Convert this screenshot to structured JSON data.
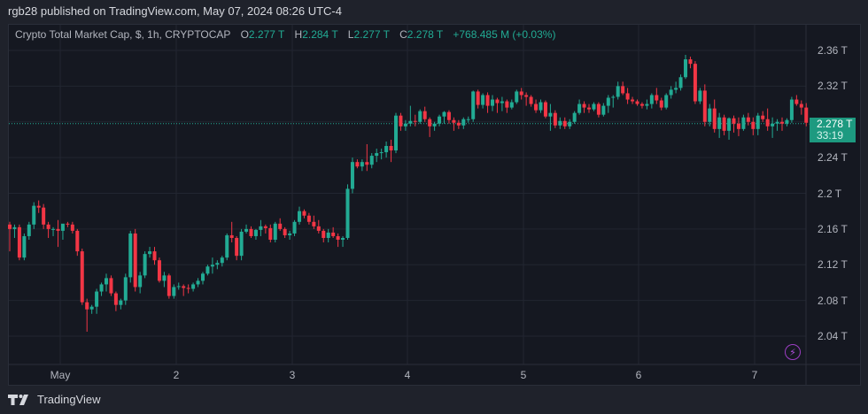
{
  "header": {
    "published": "rgb28 published on TradingView.com, May 07, 2024 08:26 UTC-4"
  },
  "legend": {
    "symbol": "Crypto Total Market Cap, $, 1h, CRYPTOCAP",
    "o_label": "O",
    "o": "2.277 T",
    "h_label": "H",
    "h": "2.284 T",
    "l_label": "L",
    "l": "2.277 T",
    "c_label": "C",
    "c": "2.278 T",
    "change": "+768.485 M (+0.03%)"
  },
  "price_tag": {
    "price": "2.278 T",
    "countdown": "33:19"
  },
  "footer": {
    "brand": "TradingView"
  },
  "colors": {
    "up": "#22ab94",
    "down": "#f23645",
    "bg": "#151821",
    "grid": "#222631",
    "accent": "#1d9a80",
    "bolt": "#9c3ec4"
  },
  "chart_data": {
    "type": "candlestick",
    "title": "Crypto Total Market Cap, $, 1h, CRYPTOCAP",
    "xlabel": "",
    "ylabel": "",
    "x_ticks": [
      "May",
      "2",
      "3",
      "4",
      "5",
      "6",
      "7"
    ],
    "y_ticks": [
      "2.36 T",
      "2.32 T",
      "2.28 T",
      "2.24 T",
      "2.2 T",
      "2.16 T",
      "2.12 T",
      "2.08 T",
      "2.04 T"
    ],
    "y_tick_values": [
      2.36,
      2.32,
      2.28,
      2.24,
      2.2,
      2.16,
      2.12,
      2.08,
      2.04
    ],
    "ylim": [
      2.0,
      2.37
    ],
    "last_price": 2.278,
    "grid": true,
    "candles_start_x": 11,
    "candle_spacing": 5.45,
    "candles": [
      [
        2.165,
        2.168,
        2.135,
        2.16
      ],
      [
        2.16,
        2.165,
        2.15,
        2.162
      ],
      [
        2.162,
        2.165,
        2.125,
        2.128
      ],
      [
        2.128,
        2.155,
        2.125,
        2.152
      ],
      [
        2.152,
        2.168,
        2.148,
        2.165
      ],
      [
        2.165,
        2.19,
        2.16,
        2.186
      ],
      [
        2.186,
        2.192,
        2.178,
        2.184
      ],
      [
        2.184,
        2.188,
        2.16,
        2.165
      ],
      [
        2.165,
        2.168,
        2.15,
        2.16
      ],
      [
        2.16,
        2.162,
        2.152,
        2.16
      ],
      [
        2.16,
        2.17,
        2.14,
        2.158
      ],
      [
        2.158,
        2.165,
        2.148,
        2.166
      ],
      [
        2.166,
        2.168,
        2.162,
        2.165
      ],
      [
        2.165,
        2.168,
        2.155,
        2.158
      ],
      [
        2.158,
        2.16,
        2.13,
        2.135
      ],
      [
        2.135,
        2.138,
        2.075,
        2.078
      ],
      [
        2.078,
        2.082,
        2.045,
        2.07
      ],
      [
        2.07,
        2.075,
        2.065,
        2.073
      ],
      [
        2.073,
        2.093,
        2.065,
        2.09
      ],
      [
        2.09,
        2.1,
        2.085,
        2.098
      ],
      [
        2.098,
        2.11,
        2.09,
        2.105
      ],
      [
        2.105,
        2.108,
        2.085,
        2.088
      ],
      [
        2.088,
        2.09,
        2.068,
        2.075
      ],
      [
        2.075,
        2.082,
        2.07,
        2.08
      ],
      [
        2.08,
        2.11,
        2.075,
        2.106
      ],
      [
        2.106,
        2.158,
        2.1,
        2.155
      ],
      [
        2.155,
        2.16,
        2.09,
        2.095
      ],
      [
        2.095,
        2.112,
        2.088,
        2.108
      ],
      [
        2.108,
        2.135,
        2.105,
        2.132
      ],
      [
        2.132,
        2.14,
        2.128,
        2.135
      ],
      [
        2.135,
        2.14,
        2.12,
        2.125
      ],
      [
        2.125,
        2.128,
        2.1,
        2.102
      ],
      [
        2.102,
        2.112,
        2.095,
        2.108
      ],
      [
        2.108,
        2.11,
        2.082,
        2.085
      ],
      [
        2.085,
        2.098,
        2.082,
        2.095
      ],
      [
        2.095,
        2.1,
        2.092,
        2.096
      ],
      [
        2.096,
        2.098,
        2.085,
        2.094
      ],
      [
        2.094,
        2.098,
        2.088,
        2.093
      ],
      [
        2.093,
        2.1,
        2.09,
        2.098
      ],
      [
        2.098,
        2.105,
        2.095,
        2.102
      ],
      [
        2.102,
        2.112,
        2.098,
        2.11
      ],
      [
        2.11,
        2.12,
        2.108,
        2.118
      ],
      [
        2.118,
        2.128,
        2.11,
        2.12
      ],
      [
        2.12,
        2.125,
        2.115,
        2.122
      ],
      [
        2.122,
        2.13,
        2.118,
        2.128
      ],
      [
        2.128,
        2.155,
        2.125,
        2.153
      ],
      [
        2.153,
        2.168,
        2.145,
        2.15
      ],
      [
        2.15,
        2.152,
        2.125,
        2.13
      ],
      [
        2.13,
        2.16,
        2.125,
        2.157
      ],
      [
        2.157,
        2.165,
        2.155,
        2.16
      ],
      [
        2.16,
        2.163,
        2.15,
        2.152
      ],
      [
        2.152,
        2.16,
        2.148,
        2.159
      ],
      [
        2.159,
        2.17,
        2.152,
        2.163
      ],
      [
        2.163,
        2.165,
        2.155,
        2.161
      ],
      [
        2.161,
        2.165,
        2.145,
        2.148
      ],
      [
        2.148,
        2.168,
        2.145,
        2.166
      ],
      [
        2.166,
        2.172,
        2.158,
        2.16
      ],
      [
        2.16,
        2.162,
        2.15,
        2.153
      ],
      [
        2.153,
        2.158,
        2.148,
        2.155
      ],
      [
        2.155,
        2.17,
        2.152,
        2.168
      ],
      [
        2.168,
        2.185,
        2.165,
        2.18
      ],
      [
        2.18,
        2.182,
        2.172,
        2.175
      ],
      [
        2.175,
        2.178,
        2.165,
        2.168
      ],
      [
        2.168,
        2.175,
        2.16,
        2.163
      ],
      [
        2.163,
        2.17,
        2.155,
        2.158
      ],
      [
        2.158,
        2.16,
        2.145,
        2.15
      ],
      [
        2.15,
        2.16,
        2.145,
        2.156
      ],
      [
        2.156,
        2.162,
        2.15,
        2.152
      ],
      [
        2.152,
        2.155,
        2.14,
        2.148
      ],
      [
        2.148,
        2.152,
        2.14,
        2.15
      ],
      [
        2.15,
        2.21,
        2.148,
        2.205
      ],
      [
        2.205,
        2.24,
        2.2,
        2.235
      ],
      [
        2.235,
        2.238,
        2.228,
        2.23
      ],
      [
        2.23,
        2.238,
        2.225,
        2.235
      ],
      [
        2.235,
        2.255,
        2.225,
        2.232
      ],
      [
        2.232,
        2.245,
        2.228,
        2.242
      ],
      [
        2.242,
        2.25,
        2.235,
        2.245
      ],
      [
        2.245,
        2.25,
        2.238,
        2.246
      ],
      [
        2.246,
        2.258,
        2.24,
        2.253
      ],
      [
        2.253,
        2.26,
        2.235,
        2.248
      ],
      [
        2.248,
        2.29,
        2.245,
        2.287
      ],
      [
        2.287,
        2.29,
        2.27,
        2.275
      ],
      [
        2.275,
        2.282,
        2.27,
        2.278
      ],
      [
        2.278,
        2.298,
        2.275,
        2.281
      ],
      [
        2.281,
        2.288,
        2.275,
        2.28
      ],
      [
        2.28,
        2.294,
        2.278,
        2.292
      ],
      [
        2.292,
        2.297,
        2.28,
        2.283
      ],
      [
        2.283,
        2.285,
        2.263,
        2.275
      ],
      [
        2.275,
        2.28,
        2.27,
        2.278
      ],
      [
        2.278,
        2.288,
        2.275,
        2.286
      ],
      [
        2.286,
        2.292,
        2.278,
        2.291
      ],
      [
        2.291,
        2.293,
        2.278,
        2.282
      ],
      [
        2.282,
        2.285,
        2.27,
        2.279
      ],
      [
        2.279,
        2.282,
        2.272,
        2.276
      ],
      [
        2.276,
        2.285,
        2.272,
        2.283
      ],
      [
        2.283,
        2.286,
        2.279,
        2.283
      ],
      [
        2.283,
        2.315,
        2.28,
        2.314
      ],
      [
        2.314,
        2.316,
        2.295,
        2.299
      ],
      [
        2.299,
        2.312,
        2.295,
        2.31
      ],
      [
        2.31,
        2.313,
        2.29,
        2.298
      ],
      [
        2.298,
        2.31,
        2.292,
        2.305
      ],
      [
        2.305,
        2.307,
        2.29,
        2.301
      ],
      [
        2.301,
        2.308,
        2.292,
        2.303
      ],
      [
        2.303,
        2.305,
        2.29,
        2.296
      ],
      [
        2.296,
        2.305,
        2.294,
        2.302
      ],
      [
        2.302,
        2.316,
        2.3,
        2.314
      ],
      [
        2.314,
        2.318,
        2.305,
        2.31
      ],
      [
        2.31,
        2.313,
        2.298,
        2.308
      ],
      [
        2.308,
        2.31,
        2.297,
        2.3
      ],
      [
        2.3,
        2.305,
        2.29,
        2.293
      ],
      [
        2.293,
        2.305,
        2.29,
        2.302
      ],
      [
        2.302,
        2.304,
        2.284,
        2.286
      ],
      [
        2.286,
        2.3,
        2.27,
        2.29
      ],
      [
        2.29,
        2.293,
        2.273,
        2.276
      ],
      [
        2.276,
        2.285,
        2.272,
        2.281
      ],
      [
        2.281,
        2.285,
        2.272,
        2.275
      ],
      [
        2.275,
        2.283,
        2.272,
        2.28
      ],
      [
        2.28,
        2.292,
        2.278,
        2.29
      ],
      [
        2.29,
        2.305,
        2.288,
        2.3
      ],
      [
        2.3,
        2.303,
        2.29,
        2.296
      ],
      [
        2.296,
        2.3,
        2.29,
        2.294
      ],
      [
        2.294,
        2.302,
        2.292,
        2.3
      ],
      [
        2.3,
        2.302,
        2.285,
        2.288
      ],
      [
        2.288,
        2.301,
        2.286,
        2.298
      ],
      [
        2.298,
        2.31,
        2.29,
        2.307
      ],
      [
        2.307,
        2.31,
        2.296,
        2.308
      ],
      [
        2.308,
        2.325,
        2.305,
        2.32
      ],
      [
        2.32,
        2.325,
        2.31,
        2.312
      ],
      [
        2.312,
        2.318,
        2.3,
        2.305
      ],
      [
        2.305,
        2.308,
        2.3,
        2.303
      ],
      [
        2.303,
        2.305,
        2.298,
        2.3
      ],
      [
        2.3,
        2.302,
        2.295,
        2.298
      ],
      [
        2.298,
        2.305,
        2.294,
        2.3
      ],
      [
        2.3,
        2.312,
        2.295,
        2.31
      ],
      [
        2.31,
        2.318,
        2.3,
        2.304
      ],
      [
        2.304,
        2.307,
        2.293,
        2.296
      ],
      [
        2.296,
        2.312,
        2.294,
        2.31
      ],
      [
        2.31,
        2.32,
        2.306,
        2.316
      ],
      [
        2.316,
        2.325,
        2.312,
        2.318
      ],
      [
        2.318,
        2.333,
        2.315,
        2.33
      ],
      [
        2.33,
        2.355,
        2.328,
        2.35
      ],
      [
        2.35,
        2.353,
        2.34,
        2.345
      ],
      [
        2.345,
        2.348,
        2.3,
        2.303
      ],
      [
        2.303,
        2.318,
        2.3,
        2.315
      ],
      [
        2.315,
        2.322,
        2.275,
        2.28
      ],
      [
        2.28,
        2.3,
        2.275,
        2.295
      ],
      [
        2.295,
        2.305,
        2.268,
        2.272
      ],
      [
        2.272,
        2.29,
        2.262,
        2.285
      ],
      [
        2.285,
        2.288,
        2.265,
        2.27
      ],
      [
        2.27,
        2.285,
        2.26,
        2.284
      ],
      [
        2.284,
        2.287,
        2.268,
        2.278
      ],
      [
        2.278,
        2.285,
        2.264,
        2.272
      ],
      [
        2.272,
        2.288,
        2.27,
        2.285
      ],
      [
        2.285,
        2.29,
        2.276,
        2.28
      ],
      [
        2.28,
        2.285,
        2.265,
        2.272
      ],
      [
        2.272,
        2.29,
        2.265,
        2.287
      ],
      [
        2.287,
        2.292,
        2.28,
        2.283
      ],
      [
        2.283,
        2.295,
        2.27,
        2.275
      ],
      [
        2.275,
        2.285,
        2.262,
        2.278
      ],
      [
        2.278,
        2.283,
        2.27,
        2.28
      ],
      [
        2.28,
        2.285,
        2.27,
        2.278
      ],
      [
        2.278,
        2.284,
        2.275,
        2.282
      ],
      [
        2.282,
        2.308,
        2.279,
        2.305
      ],
      [
        2.305,
        2.31,
        2.298,
        2.3
      ],
      [
        2.3,
        2.304,
        2.288,
        2.296
      ],
      [
        2.296,
        2.301,
        2.275,
        2.279
      ],
      [
        2.277,
        2.284,
        2.277,
        2.278
      ]
    ]
  }
}
